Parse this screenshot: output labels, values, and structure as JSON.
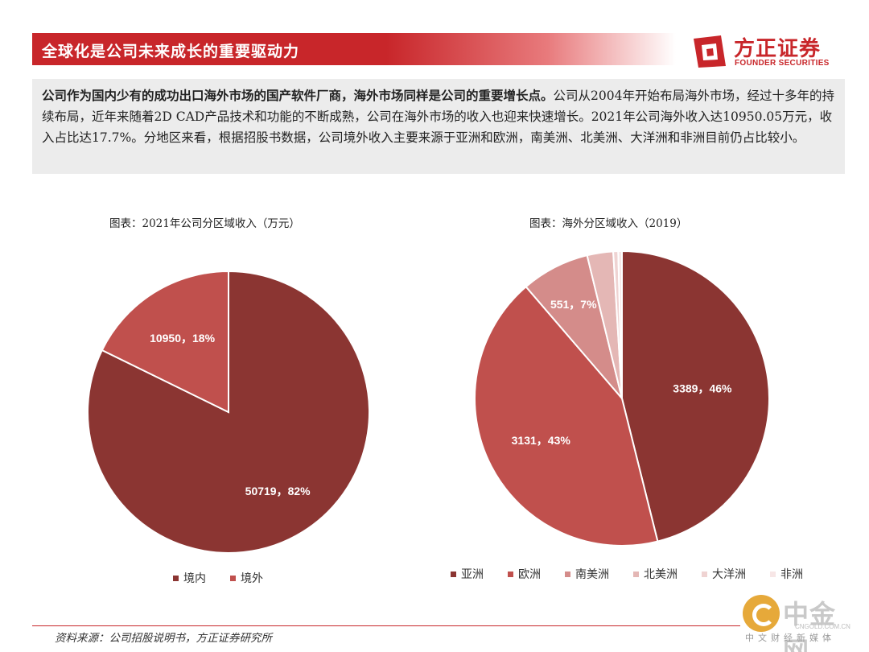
{
  "header": {
    "title": "全球化是公司未来成长的重要驱动力",
    "logo_cn": "方正证券",
    "logo_en": "FOUNDER SECURITIES"
  },
  "intro": {
    "bold": "公司作为国内少有的成功出口海外市场的国产软件厂商，海外市场同样是公司的重要增长点。",
    "rest": "公司从2004年开始布局海外市场，经过十多年的持续布局，近年来随着2D CAD产品技术和功能的不断成熟，公司在海外市场的收入也迎来快速增长。2021年公司海外收入达10950.05万元，收入占比达17.7%。分地区来看，根据招股书数据，公司境外收入主要来源于亚洲和欧洲，南美洲、北美洲、大洋洲和非洲目前仍占比较小。"
  },
  "chart_data": [
    {
      "type": "pie",
      "title": "图表：2021年公司分区域收入（万元）",
      "categories": [
        "境内",
        "境外"
      ],
      "values": [
        50719,
        10950
      ],
      "percents": [
        82,
        18
      ],
      "labels": [
        "50719，82%",
        "10950，18%"
      ],
      "colors": [
        "#8b3532",
        "#c0504d"
      ],
      "legend": "bottom"
    },
    {
      "type": "pie",
      "title": "图表：海外分区域收入（2019）",
      "categories": [
        "亚洲",
        "欧洲",
        "南美洲",
        "北美洲",
        "大洋洲",
        "非洲"
      ],
      "values": [
        3389,
        3131,
        551,
        210,
        40,
        30
      ],
      "percents": [
        46,
        43,
        7,
        3,
        0.5,
        0.5
      ],
      "labels": [
        "3389，46%",
        "3131，43%",
        "551，7%",
        "",
        "",
        ""
      ],
      "colors": [
        "#8b3532",
        "#c0504d",
        "#d48c8a",
        "#e4b7b5",
        "#efd3d2",
        "#f7e6e6"
      ],
      "legend": "bottom"
    }
  ],
  "footer": {
    "source": "资料来源：公司招股说明书，方正证券研究所"
  },
  "watermark": {
    "cn": "中金网",
    "url": "CNGOLD.COM.CN",
    "sub": "中文财经新媒体"
  }
}
